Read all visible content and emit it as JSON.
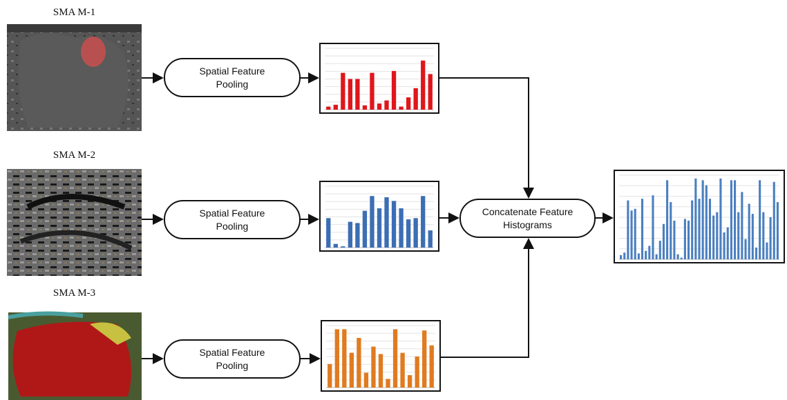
{
  "images": [
    {
      "label": "SMA M-1"
    },
    {
      "label": "SMA M-2"
    },
    {
      "label": "SMA M-3"
    }
  ],
  "nodes": [
    {
      "label": "Spatial Feature Pooling"
    },
    {
      "label": "Spatial Feature Pooling"
    },
    {
      "label": "Spatial Feature Pooling"
    },
    {
      "label": "Concatenate Feature Histograms"
    }
  ],
  "histograms": [
    {
      "color": "#e0161b",
      "values": [
        5,
        8,
        60,
        50,
        50,
        7,
        60,
        10,
        15,
        63,
        5,
        20,
        35,
        80,
        58
      ]
    },
    {
      "color": "#3c6eb4",
      "values": [
        48,
        6,
        2,
        42,
        40,
        60,
        84,
        64,
        82,
        76,
        64,
        46,
        48,
        84,
        28
      ]
    },
    {
      "color": "#e07b20",
      "values": [
        38,
        94,
        94,
        56,
        80,
        24,
        66,
        54,
        14,
        94,
        56,
        20,
        50,
        92,
        68
      ]
    },
    {
      "color": "#4a7fc0",
      "values": [
        5,
        8,
        70,
        58,
        60,
        7,
        72,
        10,
        16,
        76,
        6,
        22,
        42,
        94,
        68,
        46,
        6,
        2,
        48,
        46,
        70,
        96,
        72,
        94,
        88,
        72,
        52,
        56,
        96,
        32,
        38,
        94,
        94,
        56,
        80,
        24,
        66,
        54,
        14,
        94,
        56,
        20,
        50,
        92,
        68
      ]
    }
  ]
}
